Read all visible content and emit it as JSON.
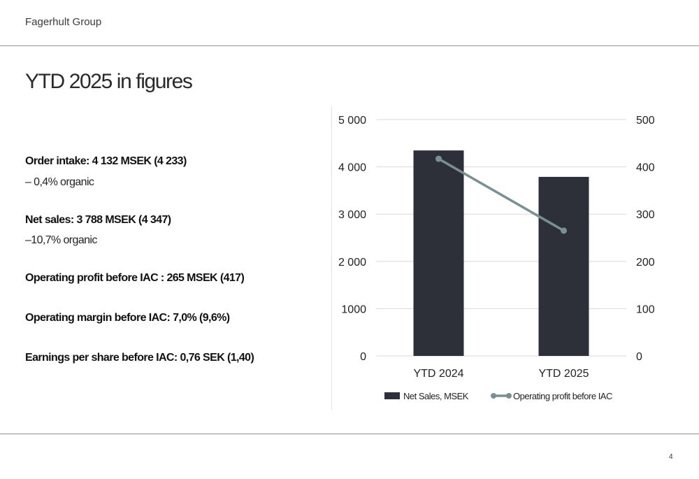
{
  "header": {
    "brand": "Fagerhult Group"
  },
  "slide": {
    "title": "YTD 2025 in figures",
    "page_number": "4",
    "kpis": [
      {
        "text": "Order intake: 4 132 MSEK   (4 233)",
        "sub": "– 0,4% organic"
      },
      {
        "text": "Net sales:  3 788 MSEK   (4 347)",
        "sub": "–10,7% organic"
      },
      {
        "text": "Operating profit before IAC : 265 MSEK   (417)",
        "sub": ""
      },
      {
        "text": "Operating margin before IAC: 7,0%   (9,6%)",
        "sub": ""
      },
      {
        "text": "Earnings per share before IAC: 0,76 SEK   (1,40)",
        "sub": ""
      }
    ]
  },
  "chart_data": {
    "type": "bar",
    "categories": [
      "YTD 2024",
      "YTD 2025"
    ],
    "series": [
      {
        "name": "Net Sales, MSEK",
        "type": "bar",
        "axis": "left",
        "color": "#2d3038",
        "values": [
          4347,
          3788
        ]
      },
      {
        "name": "Operating profit before IAC",
        "type": "line",
        "axis": "right",
        "color": "#7a9090",
        "values": [
          417,
          265
        ]
      }
    ],
    "ylim": [
      0,
      5000
    ],
    "y2lim": [
      0,
      500
    ],
    "yticks": [
      "0",
      "1000",
      "2 000",
      "3 000",
      "4 000",
      "5 000"
    ],
    "y2ticks": [
      "0",
      "100",
      "200",
      "300",
      "400",
      "500"
    ],
    "grid": true,
    "legend_position": "bottom"
  }
}
